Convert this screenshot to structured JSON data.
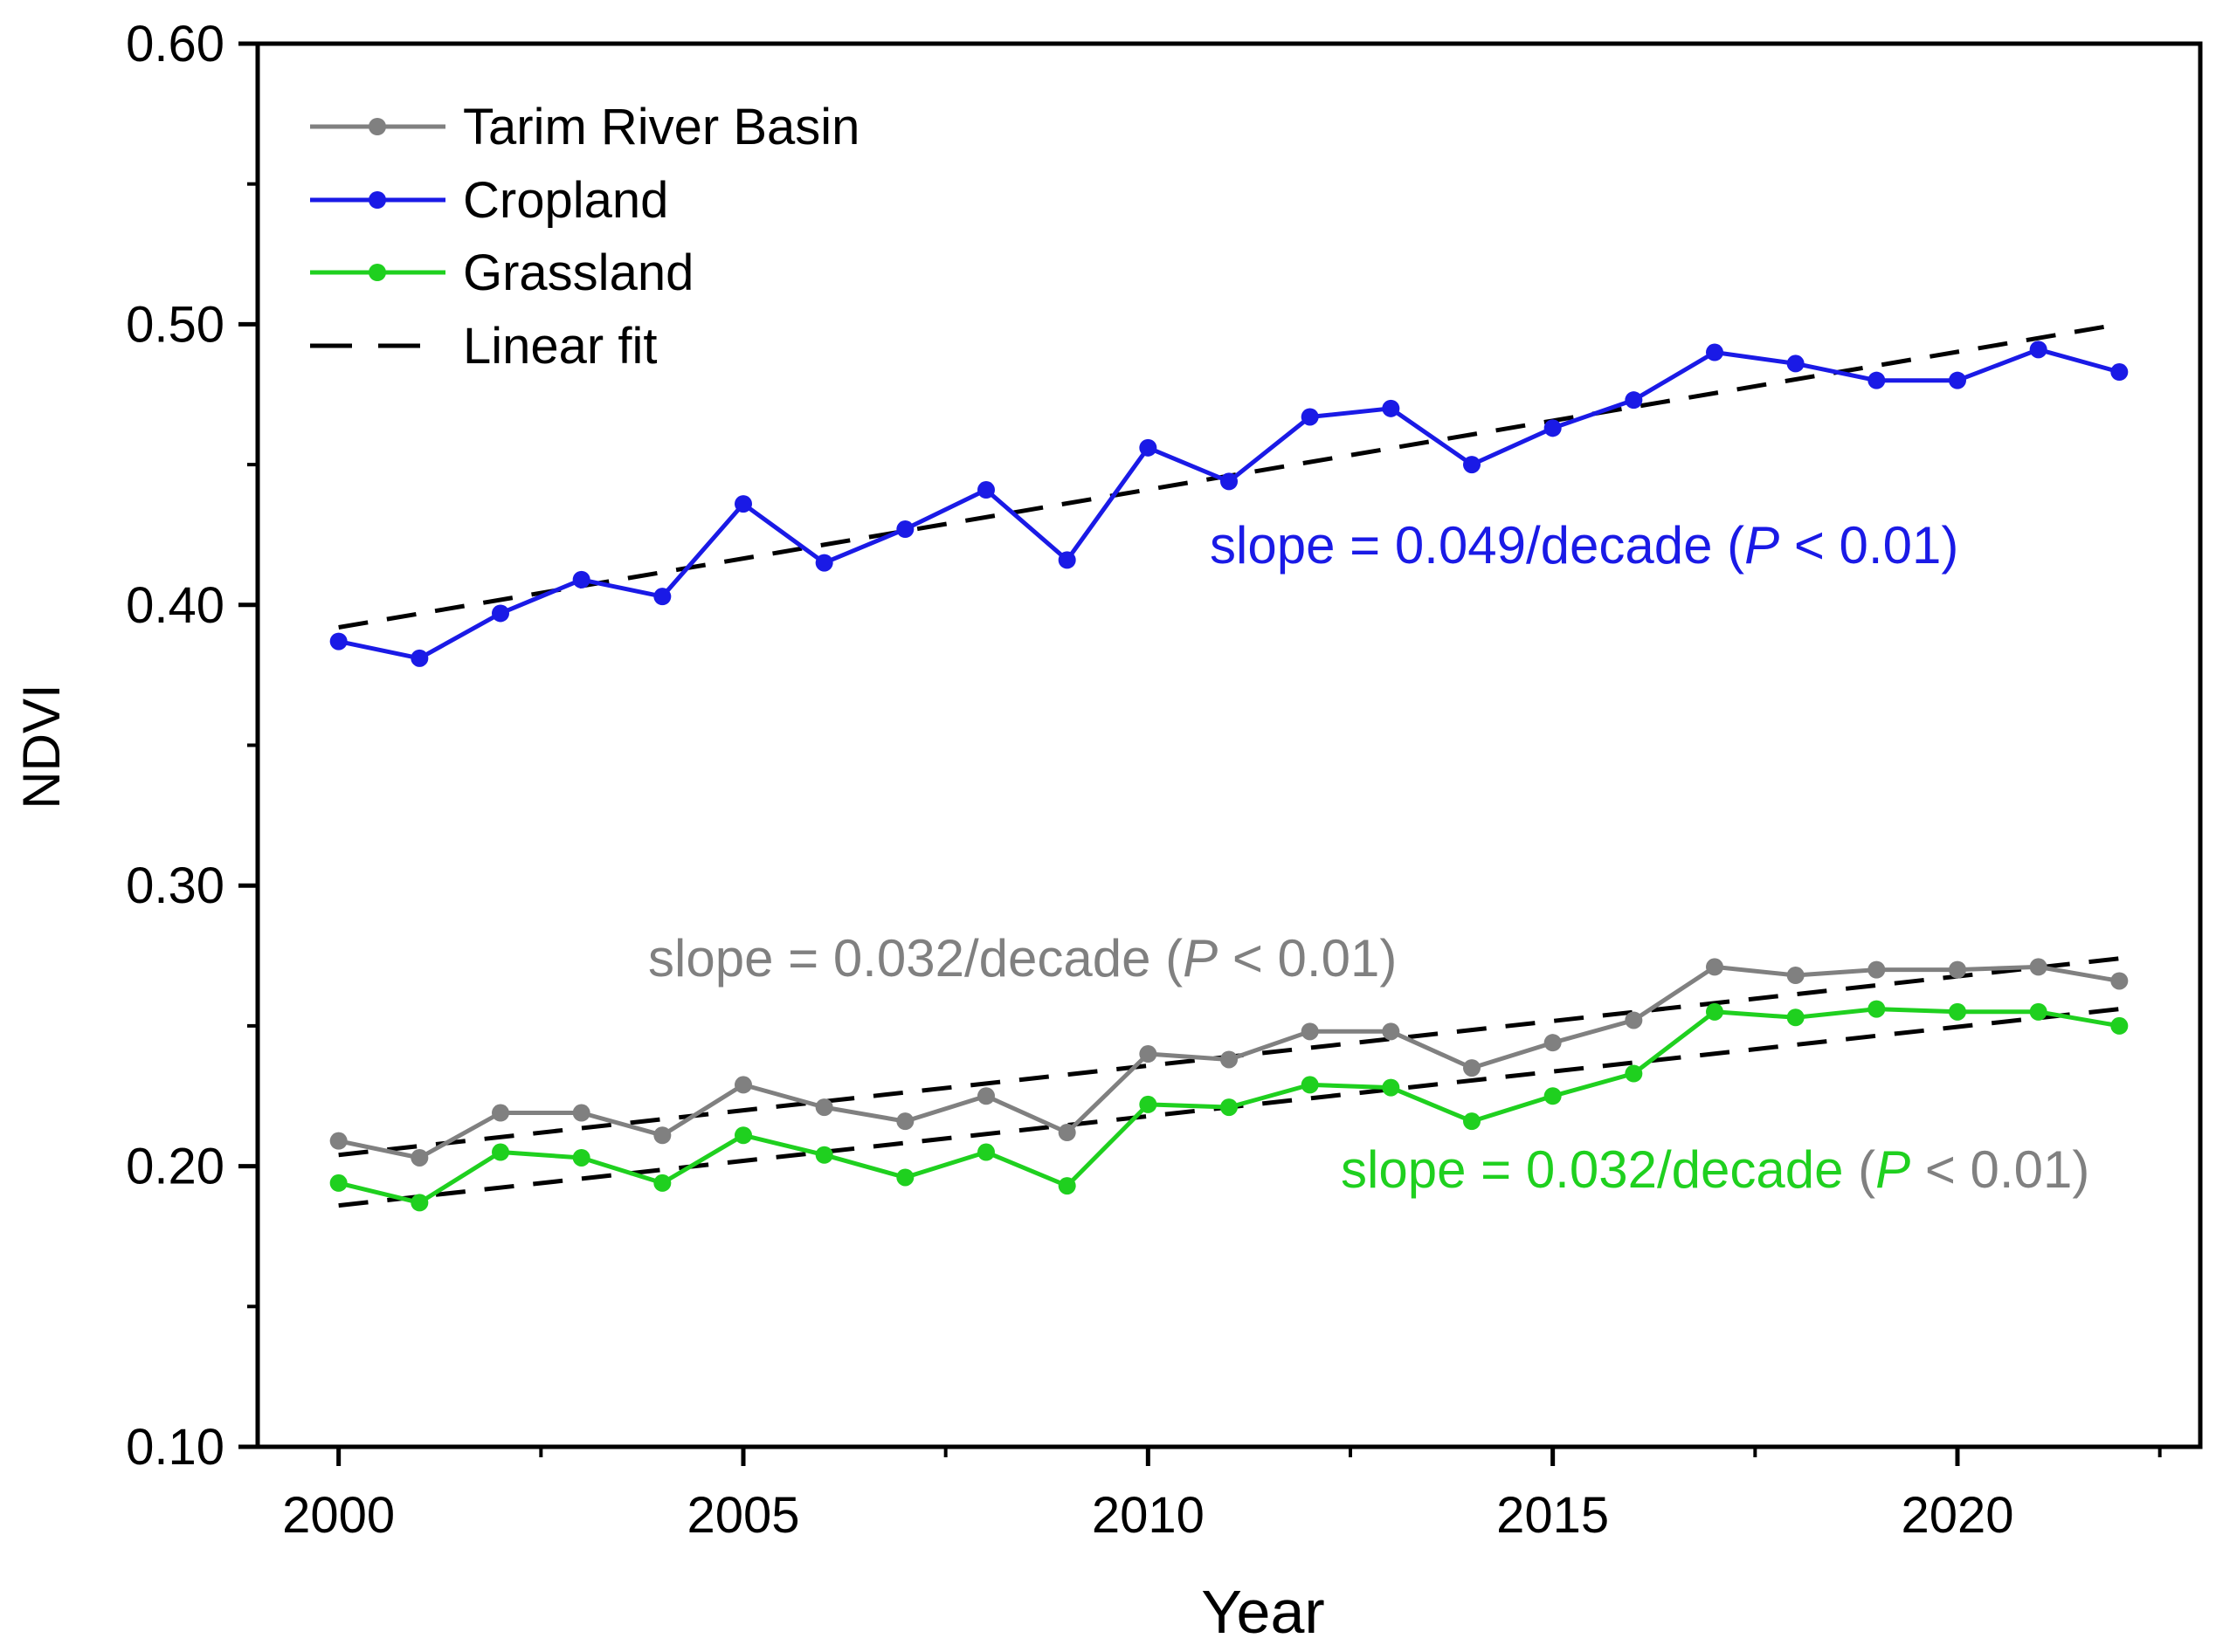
{
  "chart_data": {
    "type": "line",
    "title": "",
    "xlabel": "Year",
    "ylabel": "NDVI",
    "xlim": [
      1999,
      2023
    ],
    "ylim": [
      0.1,
      0.6
    ],
    "x_ticks": [
      2000,
      2005,
      2010,
      2015,
      2020
    ],
    "x_tick_labels": [
      "2000",
      "2005",
      "2010",
      "2015",
      "2020"
    ],
    "y_ticks": [
      0.1,
      0.2,
      0.3,
      0.4,
      0.5,
      0.6
    ],
    "y_tick_labels": [
      "0.10",
      "0.20",
      "0.30",
      "0.40",
      "0.50",
      "0.60"
    ],
    "grid": false,
    "legend_position": "top-left",
    "x": [
      2000,
      2001,
      2002,
      2003,
      2004,
      2005,
      2006,
      2007,
      2008,
      2009,
      2010,
      2011,
      2012,
      2013,
      2014,
      2015,
      2016,
      2017,
      2018,
      2019,
      2020,
      2021,
      2022
    ],
    "series": [
      {
        "name": "Tarim River Basin",
        "color": "#808080",
        "values": [
          0.209,
          0.203,
          0.219,
          0.219,
          0.211,
          0.229,
          0.221,
          0.216,
          0.225,
          0.212,
          0.24,
          0.238,
          0.248,
          0.248,
          0.235,
          0.244,
          0.252,
          0.271,
          0.268,
          0.27,
          0.27,
          0.271,
          0.266
        ],
        "fit": [
          0.204,
          0.274
        ]
      },
      {
        "name": "Cropland",
        "color": "#1a1ae6",
        "values": [
          0.387,
          0.381,
          0.397,
          0.409,
          0.403,
          0.436,
          0.415,
          0.427,
          0.441,
          0.416,
          0.456,
          0.444,
          0.467,
          0.47,
          0.45,
          0.463,
          0.473,
          0.49,
          0.486,
          0.48,
          0.48,
          0.491,
          0.483
        ],
        "fit": [
          0.392,
          0.5
        ]
      },
      {
        "name": "Grassland",
        "color": "#1fd01f",
        "values": [
          0.194,
          0.187,
          0.205,
          0.203,
          0.194,
          0.211,
          0.204,
          0.196,
          0.205,
          0.193,
          0.222,
          0.221,
          0.229,
          0.228,
          0.216,
          0.225,
          0.233,
          0.255,
          0.253,
          0.256,
          0.255,
          0.255,
          0.25
        ],
        "fit": [
          0.186,
          0.256
        ]
      }
    ],
    "fit_legend_label": "Linear fit",
    "fit_color": "#000000",
    "annotations": [
      {
        "prefix": "slope = 0.049/decade (",
        "p": "P",
        "suffix": " < 0.01)",
        "color": "#1a1ae6",
        "paren_color": "#1a1ae6"
      },
      {
        "prefix": "slope = 0.032/decade (",
        "p": "P",
        "suffix": " < 0.01)",
        "color": "#808080",
        "paren_color": "#808080"
      },
      {
        "prefix": "slope = 0.032/decade ",
        "p": "P",
        "suffix": " < 0.01)",
        "color": "#1fd01f",
        "paren_color": "#808080"
      }
    ]
  }
}
